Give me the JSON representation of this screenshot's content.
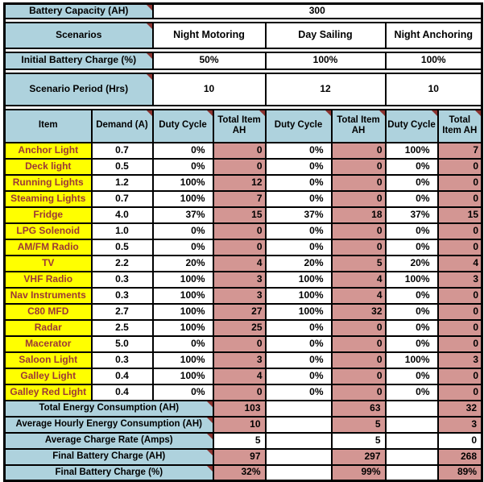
{
  "colors": {
    "header_blue": "#AED2DD",
    "pink": "#D39693",
    "yellow": "#FFFF00",
    "item_red": "#9C3836",
    "tri": "#8C3330"
  },
  "top": {
    "battery_capacity_label": "Battery Capacity (AH)",
    "battery_capacity_value": "300",
    "scenarios_label": "Scenarios",
    "scenario_names": [
      "Night Motoring",
      "Day Sailing",
      "Night Anchoring"
    ],
    "initial_charge_label": "Initial Battery Charge (%)",
    "initial_charge_values": [
      "50%",
      "100%",
      "100%"
    ],
    "period_label": "Scenario Period (Hrs)",
    "period_values": [
      "10",
      "12",
      "10"
    ]
  },
  "table": {
    "headers": [
      "Item",
      "Demand (A)",
      "Duty Cycle",
      "Total Item AH",
      "Duty Cycle",
      "Total Item AH",
      "Duty Cycle",
      "Total Item AH"
    ],
    "items": [
      {
        "name": "Anchor Light",
        "demand": "0.7",
        "dc": [
          "0%",
          "0%",
          "100%"
        ],
        "ah": [
          "0",
          "0",
          "7"
        ]
      },
      {
        "name": "Deck light",
        "demand": "0.5",
        "dc": [
          "0%",
          "0%",
          "0%"
        ],
        "ah": [
          "0",
          "0",
          "0"
        ]
      },
      {
        "name": "Running Lights",
        "demand": "1.2",
        "dc": [
          "100%",
          "0%",
          "0%"
        ],
        "ah": [
          "12",
          "0",
          "0"
        ]
      },
      {
        "name": "Steaming Lights",
        "demand": "0.7",
        "dc": [
          "100%",
          "0%",
          "0%"
        ],
        "ah": [
          "7",
          "0",
          "0"
        ]
      },
      {
        "name": "Fridge",
        "demand": "4.0",
        "dc": [
          "37%",
          "37%",
          "37%"
        ],
        "ah": [
          "15",
          "18",
          "15"
        ]
      },
      {
        "name": "LPG Solenoid",
        "demand": "1.0",
        "dc": [
          "0%",
          "0%",
          "0%"
        ],
        "ah": [
          "0",
          "0",
          "0"
        ]
      },
      {
        "name": "AM/FM Radio",
        "demand": "0.5",
        "dc": [
          "0%",
          "0%",
          "0%"
        ],
        "ah": [
          "0",
          "0",
          "0"
        ]
      },
      {
        "name": "TV",
        "demand": "2.2",
        "dc": [
          "20%",
          "20%",
          "20%"
        ],
        "ah": [
          "4",
          "5",
          "4"
        ]
      },
      {
        "name": "VHF Radio",
        "demand": "0.3",
        "dc": [
          "100%",
          "100%",
          "100%"
        ],
        "ah": [
          "3",
          "4",
          "3"
        ]
      },
      {
        "name": "Nav Instruments",
        "demand": "0.3",
        "dc": [
          "100%",
          "100%",
          "0%"
        ],
        "ah": [
          "3",
          "4",
          "0"
        ]
      },
      {
        "name": "C80 MFD",
        "demand": "2.7",
        "dc": [
          "100%",
          "100%",
          "0%"
        ],
        "ah": [
          "27",
          "32",
          "0"
        ]
      },
      {
        "name": "Radar",
        "demand": "2.5",
        "dc": [
          "100%",
          "0%",
          "0%"
        ],
        "ah": [
          "25",
          "0",
          "0"
        ]
      },
      {
        "name": "Macerator",
        "demand": "5.0",
        "dc": [
          "0%",
          "0%",
          "0%"
        ],
        "ah": [
          "0",
          "0",
          "0"
        ]
      },
      {
        "name": "Saloon Light",
        "demand": "0.3",
        "dc": [
          "100%",
          "0%",
          "100%"
        ],
        "ah": [
          "3",
          "0",
          "3"
        ]
      },
      {
        "name": "Galley Light",
        "demand": "0.4",
        "dc": [
          "100%",
          "0%",
          "0%"
        ],
        "ah": [
          "4",
          "0",
          "0"
        ]
      },
      {
        "name": "Galley Red Light",
        "demand": "0.4",
        "dc": [
          "0%",
          "0%",
          "0%"
        ],
        "ah": [
          "0",
          "0",
          "0"
        ]
      }
    ]
  },
  "summary": {
    "rows": [
      {
        "label": "Total Energy Consumption (AH)",
        "values": [
          "103",
          "63",
          "32"
        ],
        "value_style": "pink"
      },
      {
        "label": "Average Hourly Energy Consumption (AH)",
        "values": [
          "10",
          "5",
          "3"
        ],
        "value_style": "pink"
      },
      {
        "label": "Average Charge Rate (Amps)",
        "values": [
          "5",
          "5",
          "0"
        ],
        "value_style": "white"
      },
      {
        "label": "Final Battery Charge (AH)",
        "values": [
          "97",
          "297",
          "268"
        ],
        "value_style": "pink"
      },
      {
        "label": "Final Battery Charge (%)",
        "values": [
          "32%",
          "99%",
          "89%"
        ],
        "value_style": "pink"
      }
    ]
  }
}
